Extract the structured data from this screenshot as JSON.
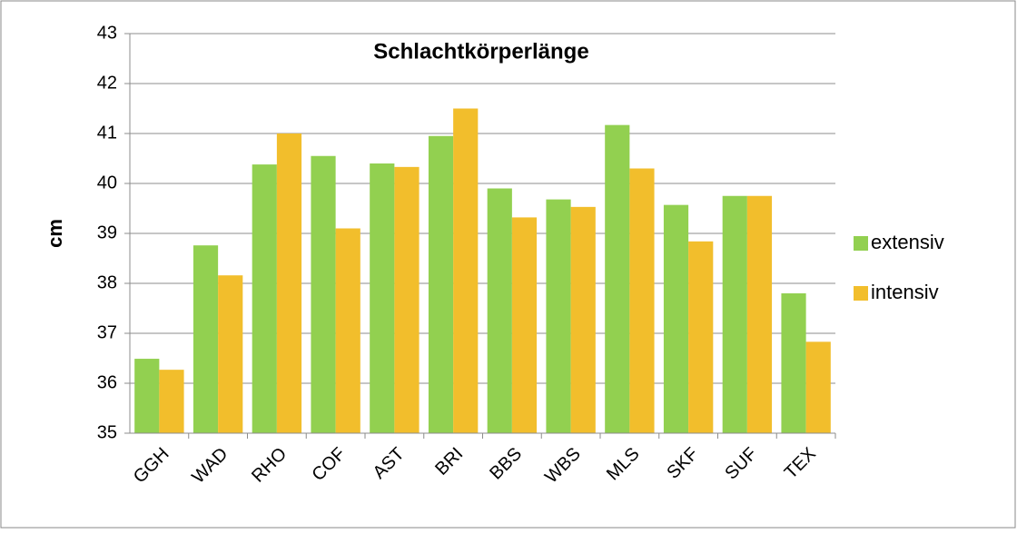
{
  "chart_data": {
    "type": "bar",
    "title": "Schlachtkörperlänge",
    "y_label": "cm",
    "categories": [
      "GGH",
      "WAD",
      "RHO",
      "COF",
      "AST",
      "BRI",
      "BBS",
      "WBS",
      "MLS",
      "SKF",
      "SUF",
      "TEX"
    ],
    "series": [
      {
        "name": "extensiv",
        "color": "#92d050",
        "values": [
          36.49,
          38.76,
          40.38,
          40.55,
          40.4,
          40.95,
          39.9,
          39.68,
          41.17,
          39.57,
          39.75,
          37.8
        ]
      },
      {
        "name": "intensiv",
        "color": "#f2be2c",
        "values": [
          36.27,
          38.16,
          41.0,
          39.1,
          40.33,
          41.5,
          39.32,
          39.53,
          40.3,
          38.84,
          39.75,
          36.83
        ]
      }
    ],
    "ylim": [
      35,
      43
    ],
    "yticks": [
      35,
      36,
      37,
      38,
      39,
      40,
      41,
      42,
      43
    ],
    "grid": true,
    "legend": "right"
  }
}
